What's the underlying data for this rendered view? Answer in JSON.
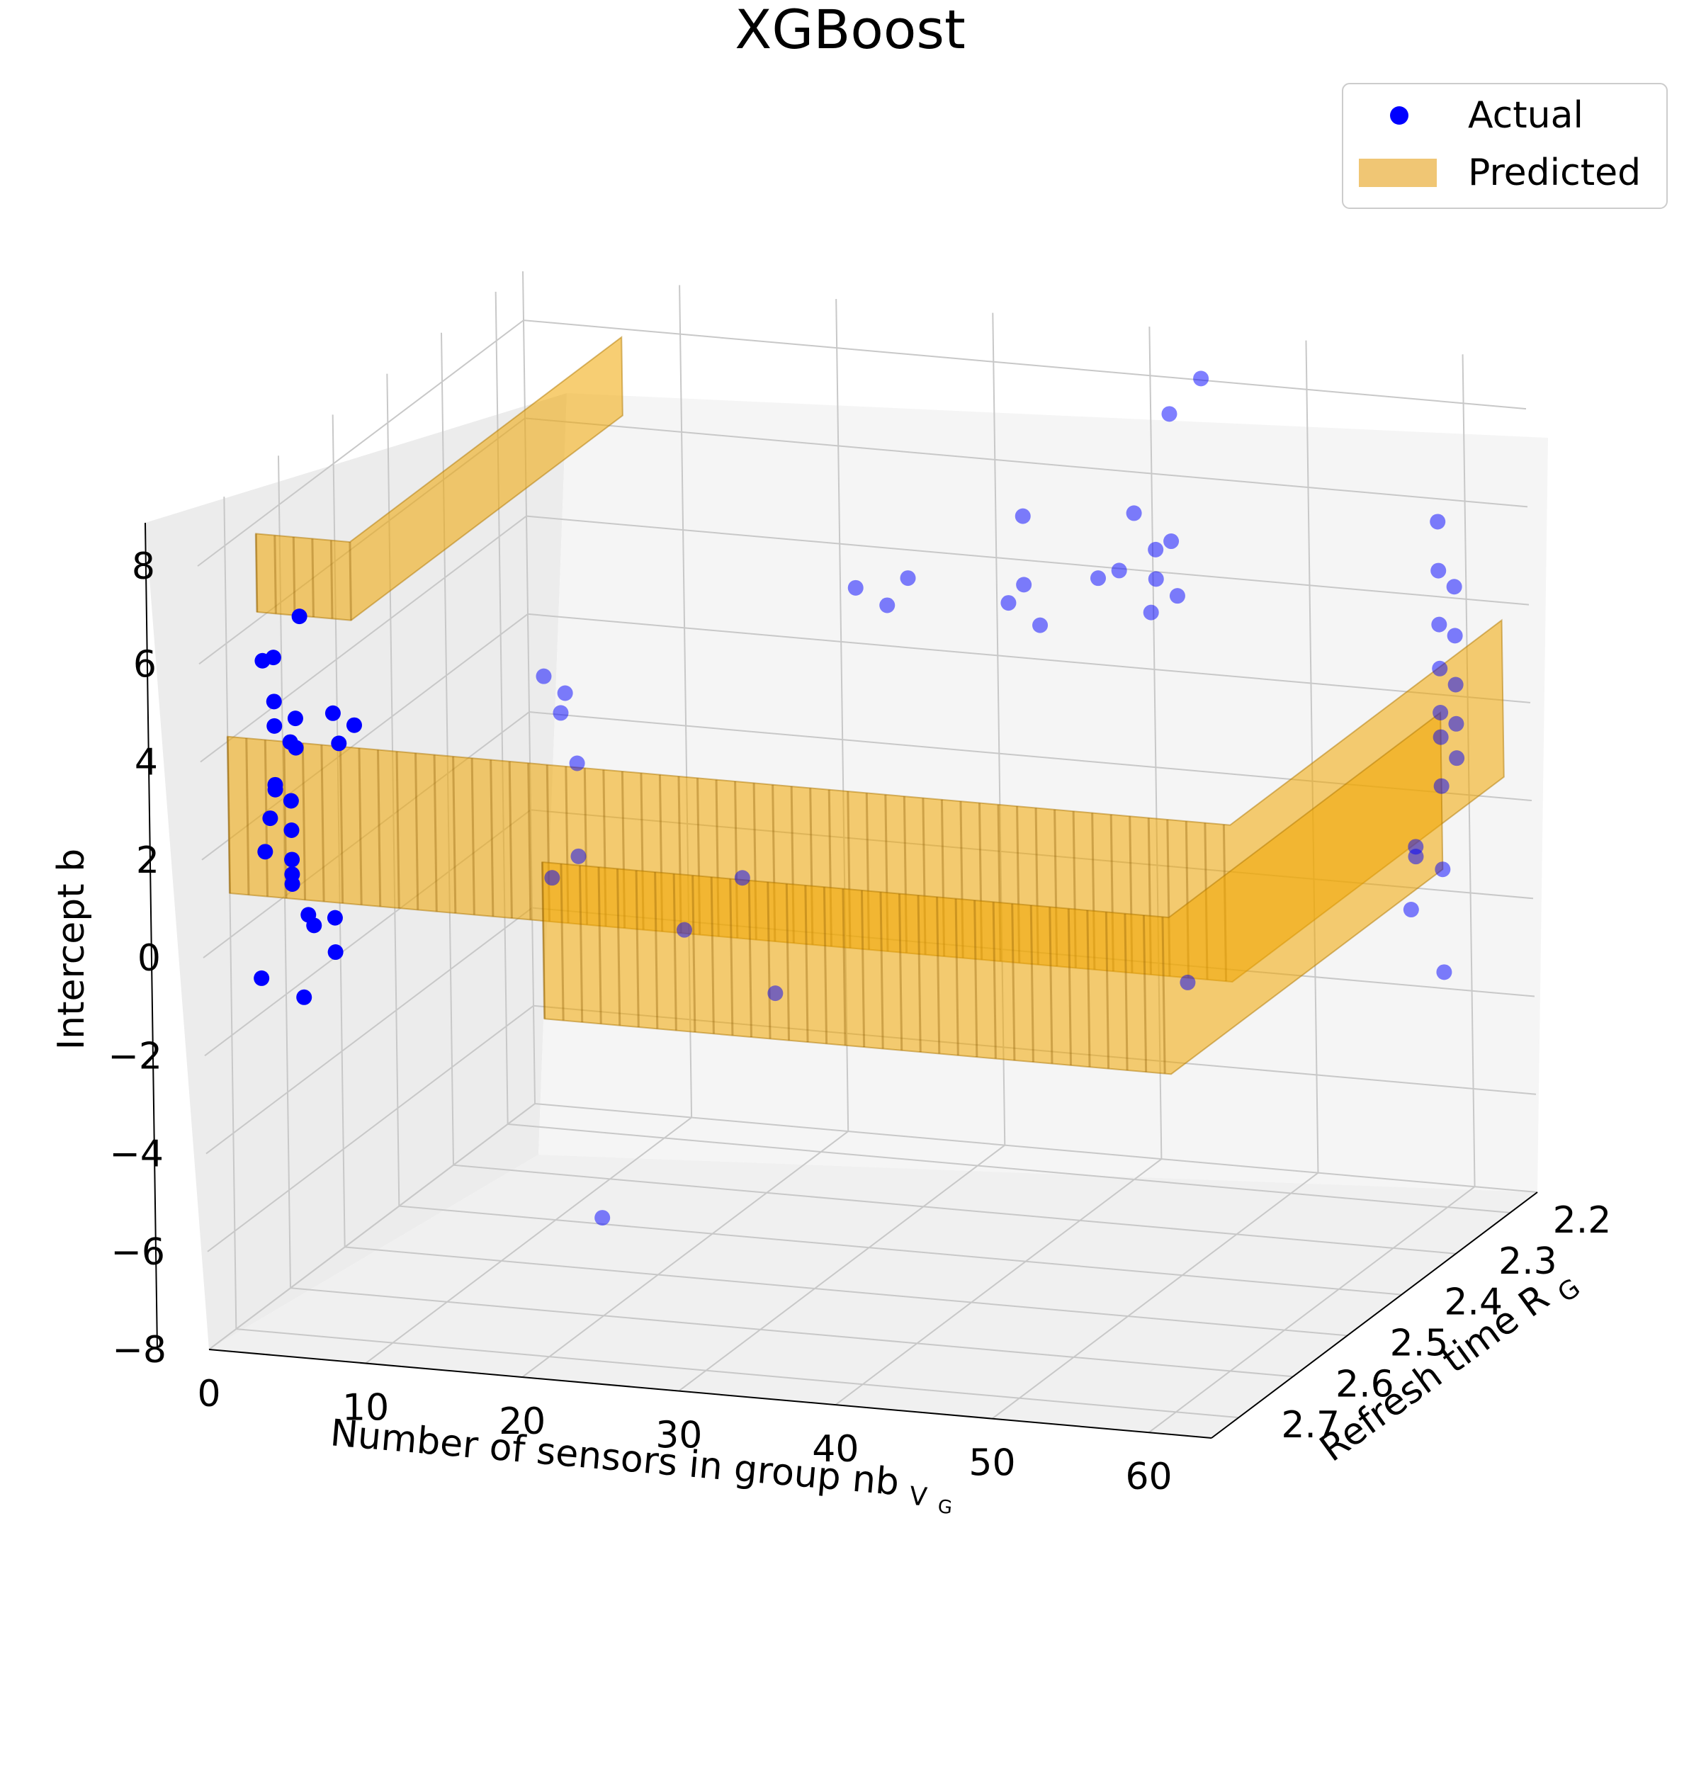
{
  "chart_data": {
    "type": "scatter",
    "subtype": "3d-scatter-with-surface",
    "title": "XGBoost",
    "xlabel": "Number of sensors in group nb",
    "xlabel_subscript": "V",
    "xlabel_subsubscript": "G",
    "ylabel": "Refresh time R",
    "ylabel_subscript": "G",
    "zlabel": "Intercept b",
    "x_ticks": [
      "0",
      "10",
      "20",
      "30",
      "40",
      "50",
      "60"
    ],
    "y_ticks": [
      "2.2",
      "2.3",
      "2.4",
      "2.5",
      "2.6",
      "2.7"
    ],
    "z_ticks": [
      "8",
      "6",
      "4",
      "2",
      "0",
      "−2",
      "−4",
      "−6",
      "−8"
    ],
    "xlim": [
      0,
      64
    ],
    "ylim": [
      2.15,
      2.75
    ],
    "zlim": [
      -8,
      9
    ],
    "grid": true,
    "legend_position": "top-right",
    "legend": [
      {
        "label": "Actual",
        "marker": "circle",
        "color": "#0000ff"
      },
      {
        "label": "Predicted",
        "marker": "patch",
        "color": "#f0c674"
      }
    ],
    "series": [
      {
        "name": "Actual",
        "kind": "scatter",
        "color": "#0000ff",
        "points": [
          [
            3,
            2.7,
            5.8
          ],
          [
            3,
            2.72,
            5.9
          ],
          [
            4,
            2.68,
            6.5
          ],
          [
            3,
            2.7,
            4.9
          ],
          [
            3,
            2.7,
            4.4
          ],
          [
            4,
            2.69,
            4.5
          ],
          [
            4,
            2.7,
            4.1
          ],
          [
            4,
            2.69,
            3.9
          ],
          [
            3,
            2.7,
            3.2
          ],
          [
            3,
            2.7,
            3.1
          ],
          [
            4,
            2.7,
            2.9
          ],
          [
            3,
            2.71,
            2.6
          ],
          [
            4,
            2.7,
            2.3
          ],
          [
            3,
            2.72,
            2.0
          ],
          [
            4,
            2.7,
            1.7
          ],
          [
            4,
            2.7,
            1.4
          ],
          [
            4,
            2.7,
            1.2
          ],
          [
            5,
            2.7,
            0.6
          ],
          [
            5,
            2.69,
            0.3
          ],
          [
            6,
            2.68,
            0.4
          ],
          [
            3,
            2.73,
            -0.5
          ],
          [
            6,
            2.68,
            -0.3
          ],
          [
            5,
            2.71,
            -1.0
          ],
          [
            5,
            2.65,
            4.3
          ],
          [
            6,
            2.64,
            4.0
          ],
          [
            5,
            2.64,
            3.6
          ],
          [
            15,
            2.55,
            4.5
          ],
          [
            16,
            2.54,
            4.1
          ],
          [
            15,
            2.52,
            3.5
          ],
          [
            16,
            2.52,
            2.5
          ],
          [
            15,
            2.54,
            0.3
          ],
          [
            16,
            2.52,
            0.6
          ],
          [
            22,
            2.5,
            -0.9
          ],
          [
            24,
            2.45,
            -0.2
          ],
          [
            26,
            2.45,
            -2.5
          ],
          [
            20,
            2.6,
            -6.0
          ],
          [
            28,
            2.35,
            5.0
          ],
          [
            30,
            2.35,
            4.7
          ],
          [
            31,
            2.34,
            5.2
          ],
          [
            36,
            2.3,
            4.5
          ],
          [
            37,
            2.3,
            4.9
          ],
          [
            37,
            2.3,
            6.3
          ],
          [
            38,
            2.3,
            4.1
          ],
          [
            40,
            2.25,
            4.7
          ],
          [
            41,
            2.24,
            4.8
          ],
          [
            42,
            2.24,
            6.0
          ],
          [
            43,
            2.23,
            5.2
          ],
          [
            43,
            2.23,
            4.6
          ],
          [
            44,
            2.23,
            5.4
          ],
          [
            44,
            2.23,
            8.0
          ],
          [
            45,
            2.2,
            8.5
          ],
          [
            44,
            2.22,
            4.2
          ],
          [
            43,
            2.24,
            4.0
          ],
          [
            45,
            2.24,
            -3.5
          ],
          [
            60,
            2.2,
            6.0
          ],
          [
            60,
            2.2,
            5.0
          ],
          [
            61,
            2.2,
            4.7
          ],
          [
            60,
            2.2,
            3.9
          ],
          [
            61,
            2.2,
            3.7
          ],
          [
            60,
            2.2,
            3.0
          ],
          [
            61,
            2.2,
            2.7
          ],
          [
            60,
            2.2,
            2.1
          ],
          [
            61,
            2.2,
            1.9
          ],
          [
            60,
            2.2,
            1.6
          ],
          [
            61,
            2.2,
            1.2
          ],
          [
            60,
            2.2,
            0.6
          ],
          [
            59,
            2.22,
            -0.5
          ],
          [
            59,
            2.22,
            -0.7
          ],
          [
            60,
            2.2,
            -1.1
          ],
          [
            59,
            2.23,
            -1.7
          ],
          [
            60,
            2.2,
            -3.2
          ]
        ]
      },
      {
        "name": "Predicted",
        "kind": "surface",
        "color": "#f0a500",
        "approx_levels": [
          {
            "x_range": [
              2,
              8
            ],
            "z": 7.5,
            "note": "tall spike"
          },
          {
            "x_range": [
              0,
              64
            ],
            "z": 2.5
          },
          {
            "x_range": [
              20,
              60
            ],
            "z": 0.5
          }
        ]
      }
    ]
  }
}
